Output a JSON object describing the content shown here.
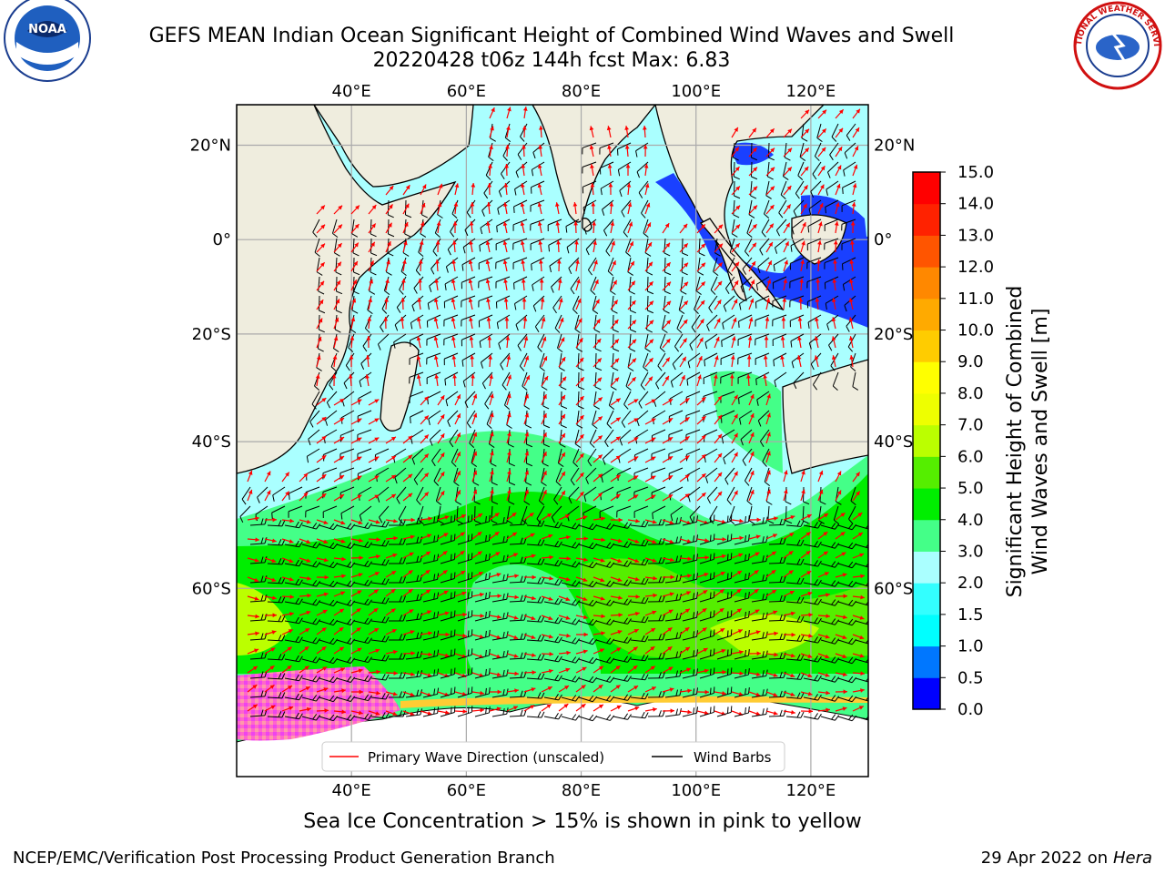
{
  "title_line1": "GEFS MEAN Indian Ocean Significant Height of Combined Wind Waves and Swell",
  "title_line2": "20220428 t06z 144h fcst   Max: 6.83",
  "note": "Sea Ice Concentration > 15% is shown in pink to yellow",
  "footer_left": "NCEP/EMC/Verification Post Processing Product Generation Branch",
  "footer_right_prefix": "29 Apr 2022 on ",
  "footer_right_host": "Hera",
  "logos": {
    "left": "NOAA",
    "right": "NATIONAL WEATHER SERVICE"
  },
  "map": {
    "lon_ticks": [
      "40°E",
      "60°E",
      "80°E",
      "100°E",
      "120°E"
    ],
    "lat_ticks": [
      "20°N",
      "0°",
      "20°S",
      "40°S",
      "60°S"
    ],
    "lon_values": [
      40,
      60,
      80,
      100,
      120
    ],
    "lat_values": [
      20,
      0,
      -20,
      -40,
      -60
    ],
    "extent": {
      "lon_min": 20,
      "lon_max": 130,
      "lat_min": -75,
      "lat_max": 28
    },
    "colors": {
      "land": "#efedde",
      "ice": "#ffffff",
      "grid": "#aaaaaa",
      "wave_arrow": "#ff0000",
      "wind_barb": "#000000"
    }
  },
  "legend": {
    "wave_label": "Primary Wave Direction (unscaled)",
    "barb_label": "Wind Barbs"
  },
  "colorbar": {
    "label_line1": "Significant Height of Combined",
    "label_line2": "Wind Waves and Swell [m]",
    "ticks": [
      "0.0",
      "0.5",
      "1.0",
      "1.5",
      "2.0",
      "3.0",
      "4.0",
      "5.0",
      "6.0",
      "7.0",
      "8.0",
      "9.0",
      "10.0",
      "11.0",
      "12.0",
      "13.0",
      "14.0",
      "15.0"
    ],
    "bin_colors": [
      "#0000ff",
      "#0077ff",
      "#00ffff",
      "#33ffff",
      "#aaffff",
      "#44ff88",
      "#00ee00",
      "#55ee00",
      "#bbff00",
      "#eeff00",
      "#ffff00",
      "#ffcc00",
      "#ffaa00",
      "#ff8800",
      "#ff5500",
      "#ff2200",
      "#ff0000"
    ]
  }
}
